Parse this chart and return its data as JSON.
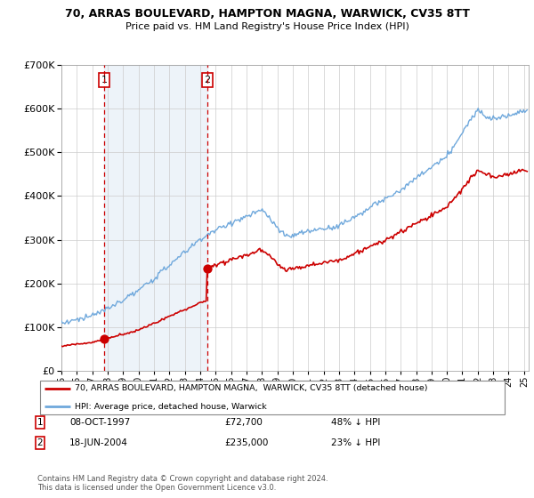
{
  "title_line1": "70, ARRAS BOULEVARD, HAMPTON MAGNA, WARWICK, CV35 8TT",
  "title_line2": "Price paid vs. HM Land Registry's House Price Index (HPI)",
  "sale1_date": "08-OCT-1997",
  "sale1_price": 72700,
  "sale1_year": 1997.77,
  "sale2_date": "18-JUN-2004",
  "sale2_price": 235000,
  "sale2_year": 2004.46,
  "legend_line1": "70, ARRAS BOULEVARD, HAMPTON MAGNA,  WARWICK, CV35 8TT (detached house)",
  "legend_line2": "HPI: Average price, detached house, Warwick",
  "footer": "Contains HM Land Registry data © Crown copyright and database right 2024.\nThis data is licensed under the Open Government Licence v3.0.",
  "hpi_color": "#6fa8dc",
  "hpi_fill_color": "#dce9f5",
  "sale_color": "#cc0000",
  "vline_color": "#cc0000",
  "ylim_max": 700000,
  "xlim_start": 1995.0,
  "xlim_end": 2025.3,
  "yticks": [
    0,
    100000,
    200000,
    300000,
    400000,
    500000,
    600000,
    700000
  ]
}
